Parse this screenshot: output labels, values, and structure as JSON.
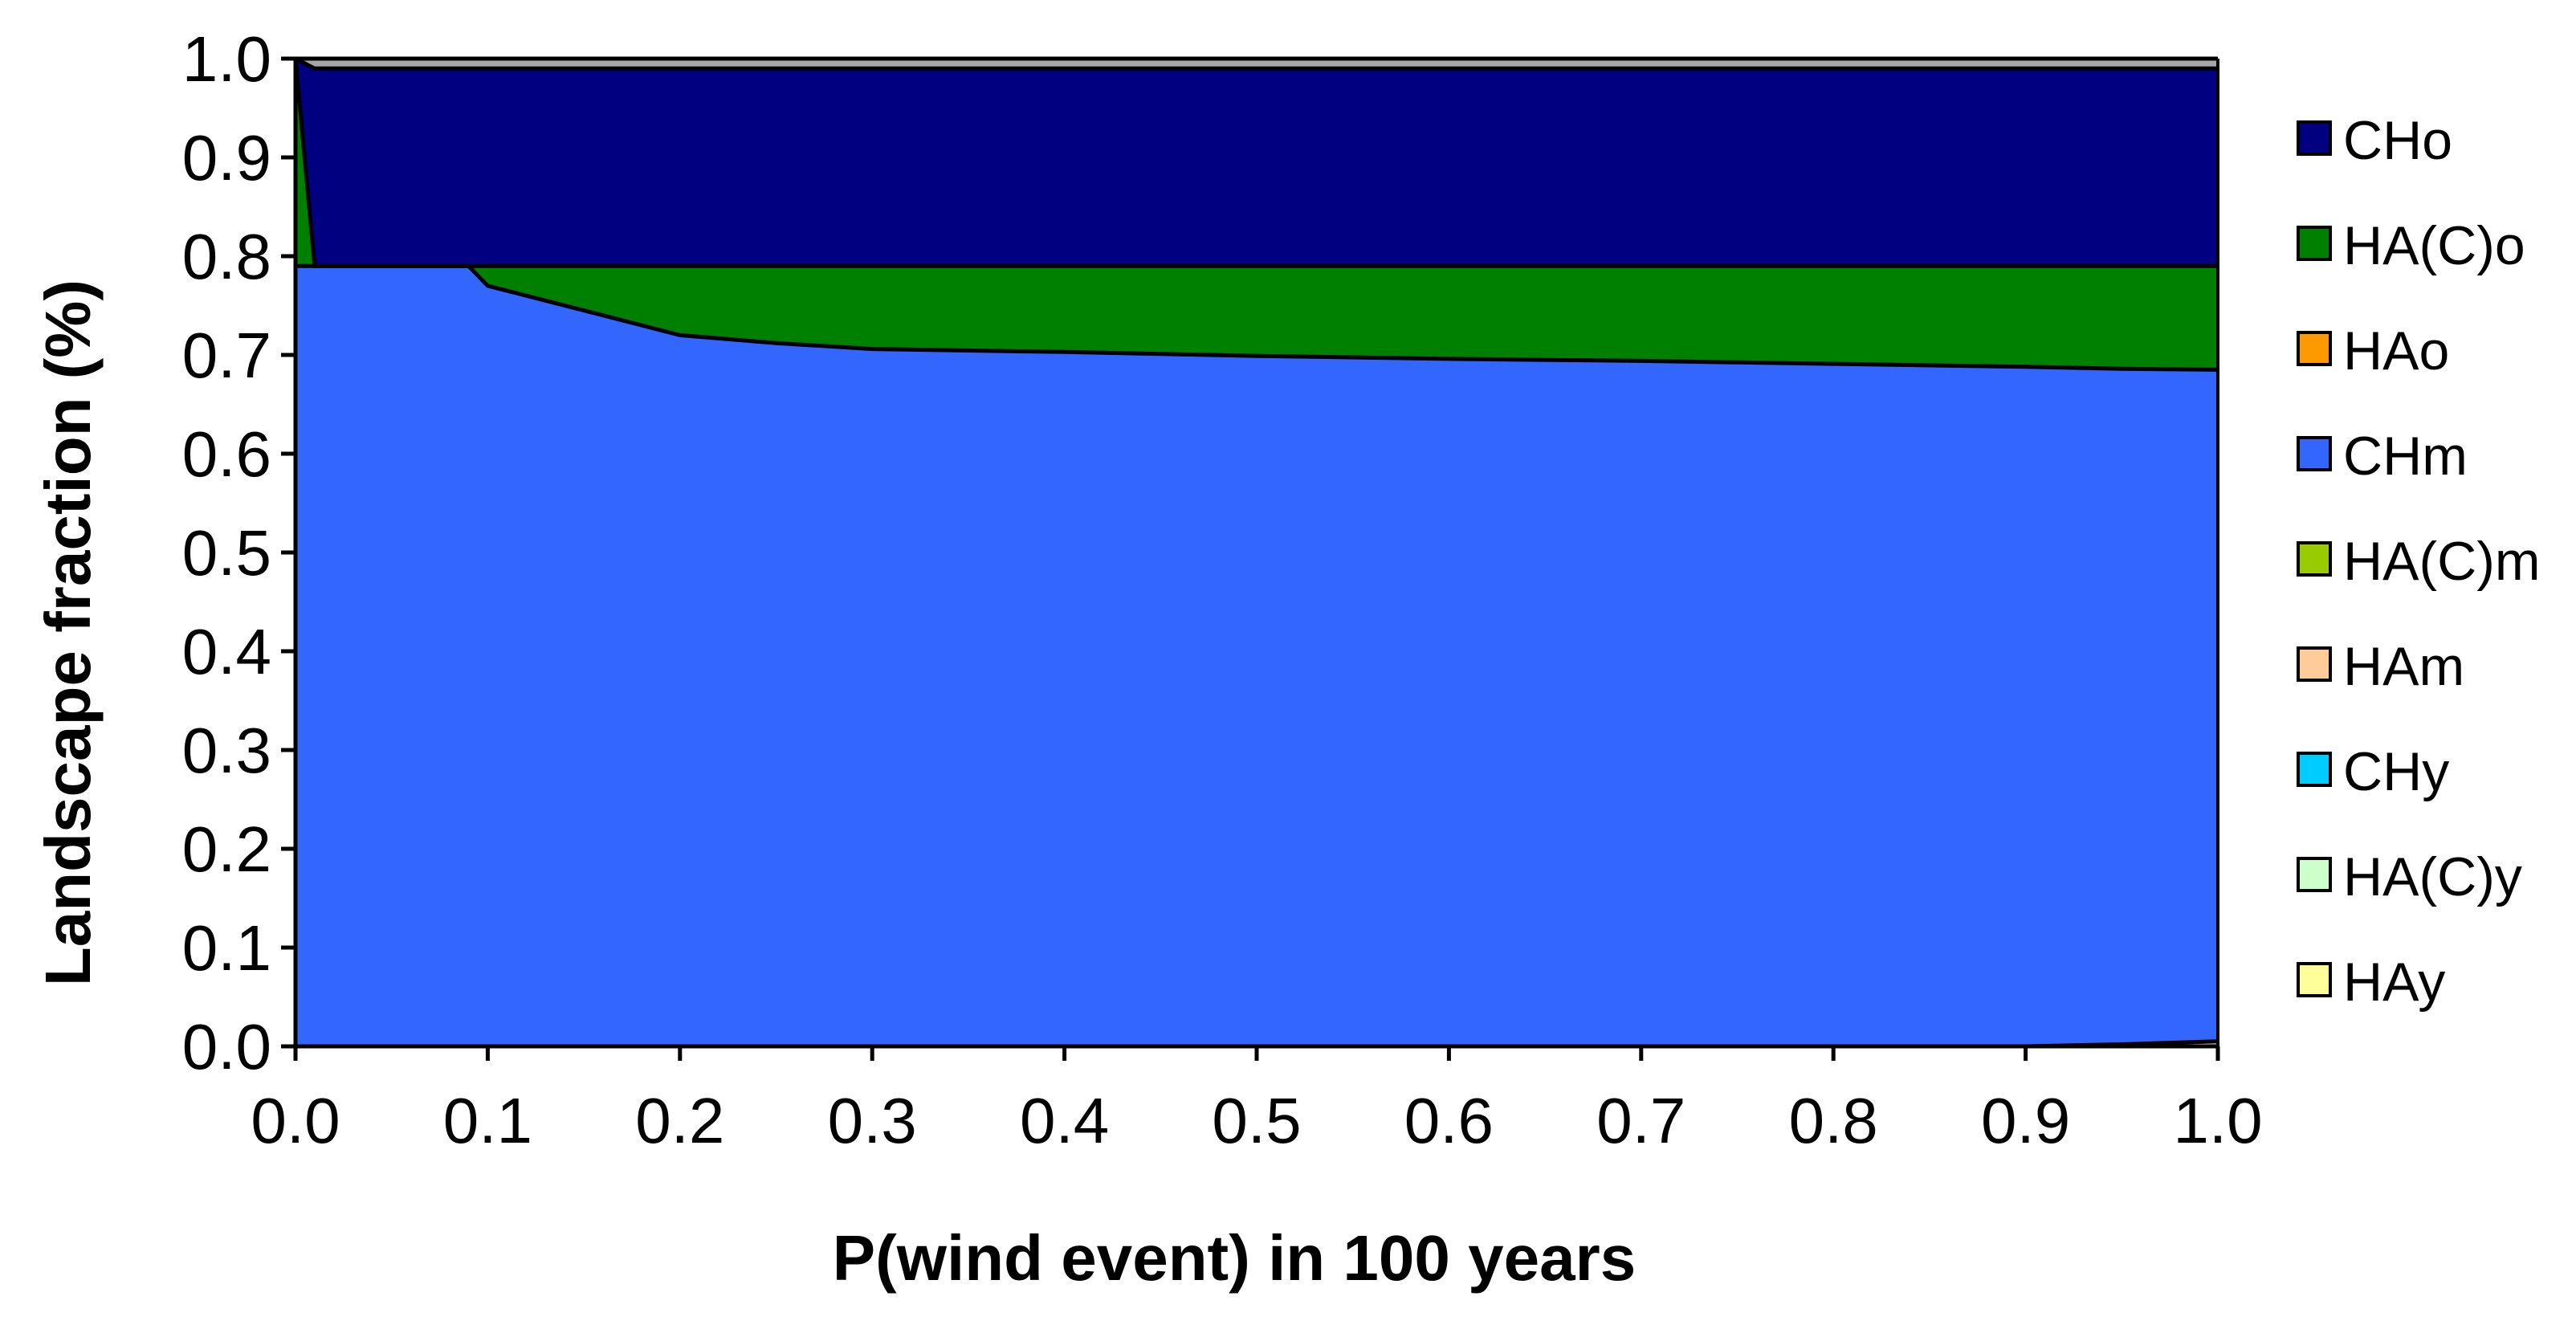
{
  "chart_data": {
    "type": "area",
    "stacked": true,
    "title": "",
    "xlabel": "P(wind event) in 100 years",
    "ylabel": "Landscape fraction (%)",
    "xlim": [
      0,
      1
    ],
    "ylim": [
      0,
      1
    ],
    "xticks": [
      "0.0",
      "0.1",
      "0.2",
      "0.3",
      "0.4",
      "0.5",
      "0.6",
      "0.7",
      "0.8",
      "0.9",
      "1.0"
    ],
    "yticks": [
      "0.0",
      "0.1",
      "0.2",
      "0.3",
      "0.4",
      "0.5",
      "0.6",
      "0.7",
      "0.8",
      "0.9",
      "1.0"
    ],
    "grid": false,
    "legend_position": "right",
    "x": [
      0.0,
      0.01,
      0.05,
      0.09,
      0.1,
      0.15,
      0.2,
      0.25,
      0.3,
      0.4,
      0.5,
      0.6,
      0.7,
      0.8,
      0.9,
      0.95,
      1.0
    ],
    "series": [
      {
        "name": "HAy",
        "color": "#FFFF99",
        "values": [
          0,
          0,
          0,
          0,
          0,
          0,
          0,
          0,
          0,
          0,
          0,
          0,
          0,
          0,
          0,
          0,
          0
        ]
      },
      {
        "name": "HA(C)y",
        "color": "#CCFFCC",
        "values": [
          0,
          0,
          0,
          0,
          0,
          0,
          0,
          0,
          0,
          0,
          0,
          0,
          0,
          0,
          0,
          0,
          0
        ]
      },
      {
        "name": "CHy",
        "color": "#00CCFF",
        "values": [
          0,
          0,
          0,
          0,
          0,
          0,
          0,
          0,
          0,
          0,
          0,
          0,
          0,
          0,
          0,
          0,
          0
        ]
      },
      {
        "name": "HAm",
        "color": "#FFCC99",
        "values": [
          0,
          0,
          0,
          0,
          0,
          0,
          0,
          0,
          0,
          0,
          0,
          0,
          0,
          0,
          0,
          0.002,
          0.005
        ]
      },
      {
        "name": "HA(C)m",
        "color": "#99CC00",
        "values": [
          0,
          0,
          0,
          0,
          0,
          0,
          0,
          0,
          0,
          0,
          0,
          0,
          0,
          0,
          0,
          0,
          0
        ]
      },
      {
        "name": "CHm",
        "color": "#3366FF",
        "values": [
          0.79,
          0.79,
          0.79,
          0.79,
          0.77,
          0.745,
          0.72,
          0.712,
          0.706,
          0.703,
          0.699,
          0.696,
          0.694,
          0.691,
          0.688,
          0.684,
          0.68
        ]
      },
      {
        "name": "HAo",
        "color": "#FF9900",
        "values": [
          0,
          0,
          0,
          0,
          0,
          0,
          0,
          0,
          0,
          0,
          0,
          0,
          0,
          0,
          0,
          0,
          0
        ]
      },
      {
        "name": "HA(C)o",
        "color": "#008000",
        "values": [
          0.21,
          0,
          0,
          0,
          0.02,
          0.045,
          0.07,
          0.078,
          0.084,
          0.087,
          0.091,
          0.094,
          0.096,
          0.099,
          0.102,
          0.104,
          0.105
        ]
      },
      {
        "name": "CHo",
        "color": "#000080",
        "values": [
          0,
          0.2,
          0.2,
          0.2,
          0.2,
          0.2,
          0.2,
          0.2,
          0.2,
          0.2,
          0.2,
          0.2,
          0.2,
          0.2,
          0.2,
          0.2,
          0.2
        ]
      },
      {
        "name": "",
        "color": "#A6A6A6",
        "values": [
          0,
          0.01,
          0.01,
          0.01,
          0.01,
          0.01,
          0.01,
          0.01,
          0.01,
          0.01,
          0.01,
          0.01,
          0.01,
          0.01,
          0.01,
          0.01,
          0.01
        ]
      }
    ],
    "legend": [
      "CHo",
      "HA(C)o",
      "HAo",
      "CHm",
      "HA(C)m",
      "HAm",
      "CHy",
      "HA(C)y",
      "HAy"
    ]
  }
}
